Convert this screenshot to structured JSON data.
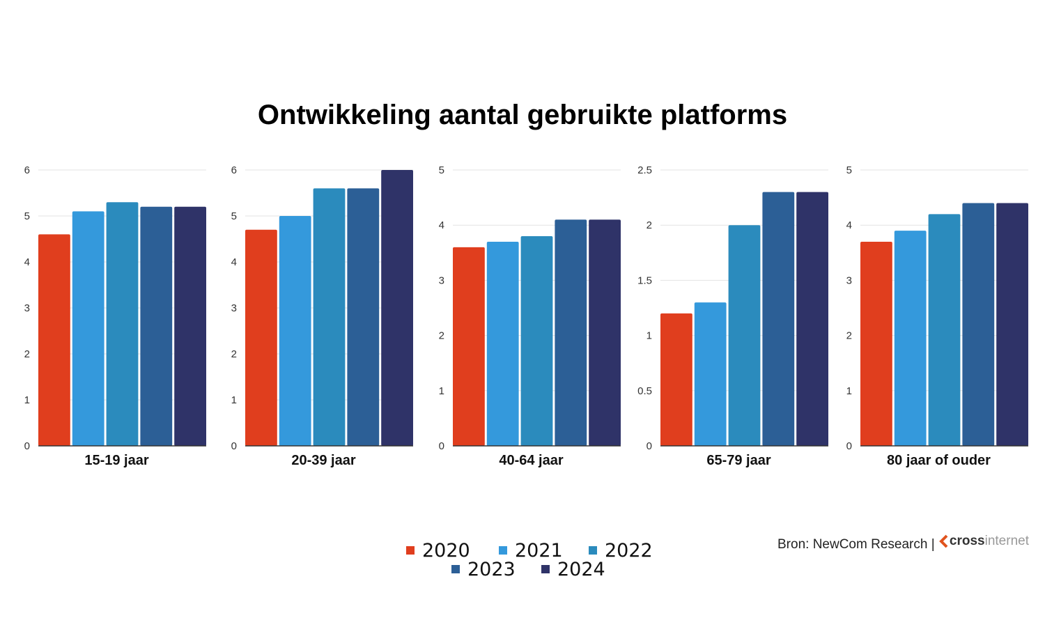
{
  "chart_data": {
    "type": "bar",
    "title": "Ontwikkeling aantal gebruikte platforms",
    "legend": {
      "placement": "bottom",
      "entries": [
        "2020",
        "2021",
        "2022",
        "2023",
        "2024"
      ]
    },
    "colors": [
      "#e03e1e",
      "#3499dc",
      "#2b8bbd",
      "#2c5f96",
      "#2f3368"
    ],
    "grid": true,
    "panels": [
      {
        "category": "15-19 jaar",
        "ylim": [
          0,
          6
        ],
        "ticks": [
          "0",
          "1",
          "2",
          "3",
          "4",
          "5",
          "6"
        ],
        "values": [
          4.6,
          5.1,
          5.3,
          5.2,
          5.2
        ]
      },
      {
        "category": "20-39 jaar",
        "ylim": [
          0,
          6
        ],
        "ticks": [
          "0",
          "1",
          "2",
          "3",
          "4",
          "5",
          "6"
        ],
        "values": [
          4.7,
          5.0,
          5.6,
          5.6,
          6.0
        ]
      },
      {
        "category": "40-64 jaar",
        "ylim": [
          0,
          5
        ],
        "ticks": [
          "0",
          "1",
          "2",
          "3",
          "4",
          "5"
        ],
        "values": [
          3.6,
          3.7,
          3.8,
          4.1,
          4.1
        ]
      },
      {
        "category": "65-79 jaar",
        "ylim": [
          0,
          2.5
        ],
        "ticks": [
          "0",
          "0.5",
          "1",
          "1.5",
          "2",
          "2.5"
        ],
        "values": [
          1.2,
          1.3,
          2.0,
          2.3,
          2.3
        ]
      },
      {
        "category": "80 jaar of ouder",
        "ylim": [
          0,
          5
        ],
        "ticks": [
          "0",
          "1",
          "2",
          "3",
          "4",
          "5"
        ],
        "values": [
          3.7,
          3.9,
          4.2,
          4.4,
          4.4
        ]
      }
    ]
  },
  "source": {
    "text": "Bron: NewCom Research |",
    "logo_bold": "cross",
    "logo_light": "internet"
  }
}
